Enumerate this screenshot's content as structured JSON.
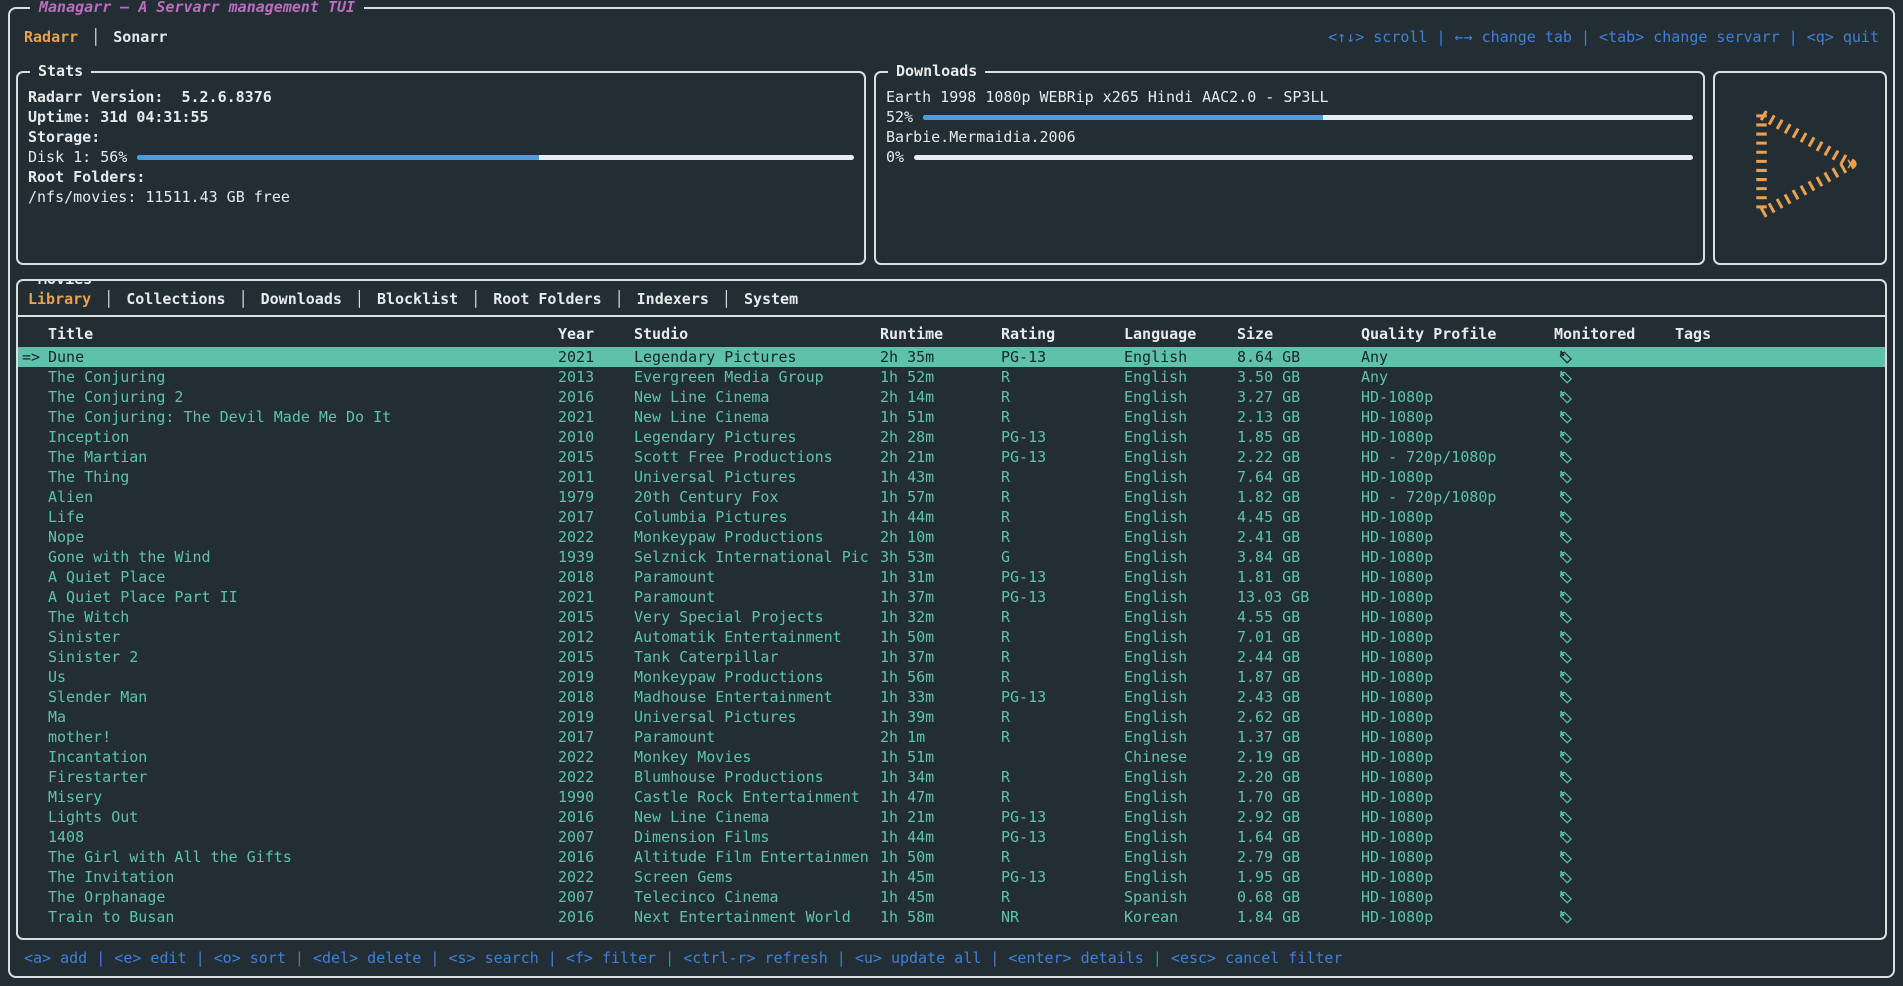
{
  "app": {
    "title": "Managarr — A Servarr management TUI"
  },
  "servarr_tabs": [
    {
      "label": "Radarr",
      "active": true
    },
    {
      "label": "Sonarr",
      "active": false
    }
  ],
  "global_hotkeys": [
    {
      "key": "<↑↓>",
      "label": "scroll"
    },
    {
      "key": "←→",
      "label": "change tab"
    },
    {
      "key": "<tab>",
      "label": "change servarr"
    },
    {
      "key": "<q>",
      "label": "quit"
    }
  ],
  "stats": {
    "title": "Stats",
    "version_label": "Radarr Version:",
    "version": "5.2.6.8376",
    "uptime_label": "Uptime:",
    "uptime": "31d 04:31:55",
    "storage_label": "Storage:",
    "disk_label": "Disk 1:",
    "disk_percent": 56,
    "root_folders_label": "Root Folders:",
    "root_folder": "/nfs/movies: 11511.43 GB free"
  },
  "downloads": {
    "title": "Downloads",
    "items": [
      {
        "name": "Earth 1998 1080p WEBRip x265 Hindi AAC2.0 - SP3LL",
        "percent": 52
      },
      {
        "name": "Barbie.Mermaidia.2006",
        "percent": 0
      }
    ]
  },
  "movies": {
    "title": "Movies",
    "tabs": [
      {
        "label": "Library",
        "active": true
      },
      {
        "label": "Collections",
        "active": false
      },
      {
        "label": "Downloads",
        "active": false
      },
      {
        "label": "Blocklist",
        "active": false
      },
      {
        "label": "Root Folders",
        "active": false
      },
      {
        "label": "Indexers",
        "active": false
      },
      {
        "label": "System",
        "active": false
      }
    ],
    "columns": [
      "Title",
      "Year",
      "Studio",
      "Runtime",
      "Rating",
      "Language",
      "Size",
      "Quality Profile",
      "Monitored",
      "Tags"
    ],
    "selected_indicator": "=>",
    "monitored_icon": "tag-icon",
    "rows": [
      {
        "title": "Dune",
        "year": "2021",
        "studio": "Legendary Pictures",
        "runtime": "2h 35m",
        "rating": "PG-13",
        "language": "English",
        "size": "8.64 GB",
        "quality": "Any",
        "monitored": true,
        "tags": "",
        "selected": true
      },
      {
        "title": "The Conjuring",
        "year": "2013",
        "studio": "Evergreen Media Group",
        "runtime": "1h 52m",
        "rating": "R",
        "language": "English",
        "size": "3.50 GB",
        "quality": "Any",
        "monitored": true,
        "tags": ""
      },
      {
        "title": "The Conjuring 2",
        "year": "2016",
        "studio": "New Line Cinema",
        "runtime": "2h 14m",
        "rating": "R",
        "language": "English",
        "size": "3.27 GB",
        "quality": "HD-1080p",
        "monitored": true,
        "tags": ""
      },
      {
        "title": "The Conjuring: The Devil Made Me Do It",
        "year": "2021",
        "studio": "New Line Cinema",
        "runtime": "1h 51m",
        "rating": "R",
        "language": "English",
        "size": "2.13 GB",
        "quality": "HD-1080p",
        "monitored": true,
        "tags": ""
      },
      {
        "title": "Inception",
        "year": "2010",
        "studio": "Legendary Pictures",
        "runtime": "2h 28m",
        "rating": "PG-13",
        "language": "English",
        "size": "1.85 GB",
        "quality": "HD-1080p",
        "monitored": true,
        "tags": ""
      },
      {
        "title": "The Martian",
        "year": "2015",
        "studio": "Scott Free Productions",
        "runtime": "2h 21m",
        "rating": "PG-13",
        "language": "English",
        "size": "2.22 GB",
        "quality": "HD - 720p/1080p",
        "monitored": true,
        "tags": ""
      },
      {
        "title": "The Thing",
        "year": "2011",
        "studio": "Universal Pictures",
        "runtime": "1h 43m",
        "rating": "R",
        "language": "English",
        "size": "7.64 GB",
        "quality": "HD-1080p",
        "monitored": true,
        "tags": ""
      },
      {
        "title": "Alien",
        "year": "1979",
        "studio": "20th Century Fox",
        "runtime": "1h 57m",
        "rating": "R",
        "language": "English",
        "size": "1.82 GB",
        "quality": "HD - 720p/1080p",
        "monitored": true,
        "tags": ""
      },
      {
        "title": "Life",
        "year": "2017",
        "studio": "Columbia Pictures",
        "runtime": "1h 44m",
        "rating": "R",
        "language": "English",
        "size": "4.45 GB",
        "quality": "HD-1080p",
        "monitored": true,
        "tags": ""
      },
      {
        "title": "Nope",
        "year": "2022",
        "studio": "Monkeypaw Productions",
        "runtime": "2h 10m",
        "rating": "R",
        "language": "English",
        "size": "2.41 GB",
        "quality": "HD-1080p",
        "monitored": true,
        "tags": ""
      },
      {
        "title": "Gone with the Wind",
        "year": "1939",
        "studio": "Selznick International Pic",
        "runtime": "3h 53m",
        "rating": "G",
        "language": "English",
        "size": "3.84 GB",
        "quality": "HD-1080p",
        "monitored": true,
        "tags": ""
      },
      {
        "title": "A Quiet Place",
        "year": "2018",
        "studio": "Paramount",
        "runtime": "1h 31m",
        "rating": "PG-13",
        "language": "English",
        "size": "1.81 GB",
        "quality": "HD-1080p",
        "monitored": true,
        "tags": ""
      },
      {
        "title": "A Quiet Place Part II",
        "year": "2021",
        "studio": "Paramount",
        "runtime": "1h 37m",
        "rating": "PG-13",
        "language": "English",
        "size": "13.03 GB",
        "quality": "HD-1080p",
        "monitored": true,
        "tags": ""
      },
      {
        "title": "The Witch",
        "year": "2015",
        "studio": "Very Special Projects",
        "runtime": "1h 32m",
        "rating": "R",
        "language": "English",
        "size": "4.55 GB",
        "quality": "HD-1080p",
        "monitored": true,
        "tags": ""
      },
      {
        "title": "Sinister",
        "year": "2012",
        "studio": "Automatik Entertainment",
        "runtime": "1h 50m",
        "rating": "R",
        "language": "English",
        "size": "7.01 GB",
        "quality": "HD-1080p",
        "monitored": true,
        "tags": ""
      },
      {
        "title": "Sinister 2",
        "year": "2015",
        "studio": "Tank Caterpillar",
        "runtime": "1h 37m",
        "rating": "R",
        "language": "English",
        "size": "2.44 GB",
        "quality": "HD-1080p",
        "monitored": true,
        "tags": ""
      },
      {
        "title": "Us",
        "year": "2019",
        "studio": "Monkeypaw Productions",
        "runtime": "1h 56m",
        "rating": "R",
        "language": "English",
        "size": "1.87 GB",
        "quality": "HD-1080p",
        "monitored": true,
        "tags": ""
      },
      {
        "title": "Slender Man",
        "year": "2018",
        "studio": "Madhouse Entertainment",
        "runtime": "1h 33m",
        "rating": "PG-13",
        "language": "English",
        "size": "2.43 GB",
        "quality": "HD-1080p",
        "monitored": true,
        "tags": ""
      },
      {
        "title": "Ma",
        "year": "2019",
        "studio": "Universal Pictures",
        "runtime": "1h 39m",
        "rating": "R",
        "language": "English",
        "size": "2.62 GB",
        "quality": "HD-1080p",
        "monitored": true,
        "tags": ""
      },
      {
        "title": "mother!",
        "year": "2017",
        "studio": "Paramount",
        "runtime": "2h 1m",
        "rating": "R",
        "language": "English",
        "size": "1.37 GB",
        "quality": "HD-1080p",
        "monitored": true,
        "tags": ""
      },
      {
        "title": "Incantation",
        "year": "2022",
        "studio": "Monkey Movies",
        "runtime": "1h 51m",
        "rating": "",
        "language": "Chinese",
        "size": "2.19 GB",
        "quality": "HD-1080p",
        "monitored": true,
        "tags": ""
      },
      {
        "title": "Firestarter",
        "year": "2022",
        "studio": "Blumhouse Productions",
        "runtime": "1h 34m",
        "rating": "R",
        "language": "English",
        "size": "2.20 GB",
        "quality": "HD-1080p",
        "monitored": true,
        "tags": ""
      },
      {
        "title": "Misery",
        "year": "1990",
        "studio": "Castle Rock Entertainment",
        "runtime": "1h 47m",
        "rating": "R",
        "language": "English",
        "size": "1.70 GB",
        "quality": "HD-1080p",
        "monitored": true,
        "tags": ""
      },
      {
        "title": "Lights Out",
        "year": "2016",
        "studio": "New Line Cinema",
        "runtime": "1h 21m",
        "rating": "PG-13",
        "language": "English",
        "size": "2.92 GB",
        "quality": "HD-1080p",
        "monitored": true,
        "tags": ""
      },
      {
        "title": "1408",
        "year": "2007",
        "studio": "Dimension Films",
        "runtime": "1h 44m",
        "rating": "PG-13",
        "language": "English",
        "size": "1.64 GB",
        "quality": "HD-1080p",
        "monitored": true,
        "tags": ""
      },
      {
        "title": "The Girl with All the Gifts",
        "year": "2016",
        "studio": "Altitude Film Entertainmen",
        "runtime": "1h 50m",
        "rating": "R",
        "language": "English",
        "size": "2.79 GB",
        "quality": "HD-1080p",
        "monitored": true,
        "tags": ""
      },
      {
        "title": "The Invitation",
        "year": "2022",
        "studio": "Screen Gems",
        "runtime": "1h 45m",
        "rating": "PG-13",
        "language": "English",
        "size": "1.95 GB",
        "quality": "HD-1080p",
        "monitored": true,
        "tags": ""
      },
      {
        "title": "The Orphanage",
        "year": "2007",
        "studio": "Telecinco Cinema",
        "runtime": "1h 45m",
        "rating": "R",
        "language": "Spanish",
        "size": "0.68 GB",
        "quality": "HD-1080p",
        "monitored": true,
        "tags": ""
      },
      {
        "title": "Train to Busan",
        "year": "2016",
        "studio": "Next Entertainment World",
        "runtime": "1h 58m",
        "rating": "NR",
        "language": "Korean",
        "size": "1.84 GB",
        "quality": "HD-1080p",
        "monitored": true,
        "tags": ""
      }
    ]
  },
  "table_hotkeys": [
    {
      "key": "<a>",
      "label": "add"
    },
    {
      "key": "<e>",
      "label": "edit"
    },
    {
      "key": "<o>",
      "label": "sort"
    },
    {
      "key": "<del>",
      "label": "delete"
    },
    {
      "key": "<s>",
      "label": "search"
    },
    {
      "key": "<f>",
      "label": "filter"
    },
    {
      "key": "<ctrl-r>",
      "label": "refresh"
    },
    {
      "key": "<u>",
      "label": "update all"
    },
    {
      "key": "<enter>",
      "label": "details"
    },
    {
      "key": "<esc>",
      "label": "cancel filter"
    }
  ],
  "colors": {
    "bg": "#222e33",
    "border": "#d8dfe1",
    "white": "#e6eaec",
    "teal": "#5fc2ae",
    "orange": "#e9a14f",
    "blue": "#4080d8",
    "magenta": "#bd6cc0",
    "progress": "#42a0dc",
    "barbg": "#e7edef",
    "selbg": "#5fc0ab",
    "seltext": "#17262b"
  }
}
